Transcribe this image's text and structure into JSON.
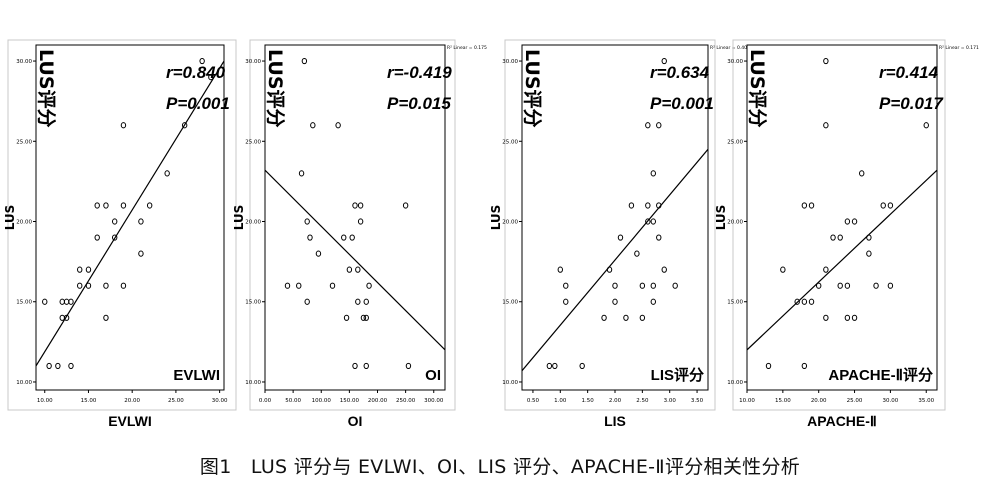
{
  "figure_caption": "图1　LUS 评分与 EVLWI、OI、LIS 评分、APACHE-Ⅱ评分相关性分析",
  "chart_data": [
    {
      "type": "scatter",
      "xlabel": "EVLWI",
      "ylabel": "LUS",
      "y_axis_title": "LUS评分",
      "in_plot_label": "EVLWI",
      "r_label": "r=0.840",
      "p_label": "P=0.001",
      "fit_note": "",
      "xlim": [
        9,
        30.5
      ],
      "ylim": [
        9.5,
        31
      ],
      "xticks": [
        10,
        15,
        20,
        25,
        30
      ],
      "xtick_labels": [
        "10.00",
        "15.00",
        "20.00",
        "25.00",
        "30.00"
      ],
      "yticks": [
        10,
        15,
        20,
        25,
        30
      ],
      "ytick_labels": [
        "10.00",
        "15.00",
        "20.00",
        "25.00",
        "30.00"
      ],
      "fit_line": [
        [
          9,
          11
        ],
        [
          30.5,
          30
        ]
      ],
      "points": [
        [
          10,
          15
        ],
        [
          10.5,
          11
        ],
        [
          11.5,
          11
        ],
        [
          12,
          15
        ],
        [
          12,
          14
        ],
        [
          12.5,
          14
        ],
        [
          12.5,
          15
        ],
        [
          13,
          11
        ],
        [
          13,
          15
        ],
        [
          14,
          16
        ],
        [
          14,
          17
        ],
        [
          15,
          16
        ],
        [
          15,
          17
        ],
        [
          16,
          19
        ],
        [
          16,
          21
        ],
        [
          17,
          16
        ],
        [
          17,
          14
        ],
        [
          17,
          21
        ],
        [
          18,
          19
        ],
        [
          18,
          20
        ],
        [
          19,
          16
        ],
        [
          19,
          21
        ],
        [
          19,
          26
        ],
        [
          21,
          20
        ],
        [
          21,
          18
        ],
        [
          22,
          21
        ],
        [
          24,
          23
        ],
        [
          26,
          26
        ],
        [
          28,
          30
        ],
        [
          29,
          29
        ]
      ]
    },
    {
      "type": "scatter",
      "xlabel": "OI",
      "ylabel": "LUS",
      "y_axis_title": "LUS评分",
      "in_plot_label": "OI",
      "r_label": "r=-0.419",
      "p_label": "P=0.015",
      "fit_note": "R² Linear = 0.175",
      "xlim": [
        0,
        320
      ],
      "ylim": [
        9.5,
        31
      ],
      "xticks": [
        0,
        50,
        100,
        150,
        200,
        250,
        300
      ],
      "xtick_labels": [
        "0.00",
        "50.00",
        "100.00",
        "150.00",
        "200.00",
        "250.00",
        "300.00"
      ],
      "yticks": [
        10,
        15,
        20,
        25,
        30
      ],
      "ytick_labels": [
        "10.00",
        "15.00",
        "20.00",
        "25.00",
        "30.00"
      ],
      "fit_line": [
        [
          0,
          23.2
        ],
        [
          320,
          12
        ]
      ],
      "points": [
        [
          40,
          16
        ],
        [
          60,
          16
        ],
        [
          65,
          23
        ],
        [
          70,
          30
        ],
        [
          75,
          20
        ],
        [
          75,
          15
        ],
        [
          80,
          19
        ],
        [
          85,
          26
        ],
        [
          95,
          18
        ],
        [
          120,
          16
        ],
        [
          130,
          26
        ],
        [
          140,
          19
        ],
        [
          145,
          14
        ],
        [
          150,
          17
        ],
        [
          155,
          19
        ],
        [
          160,
          21
        ],
        [
          160,
          11
        ],
        [
          165,
          17
        ],
        [
          165,
          15
        ],
        [
          170,
          20
        ],
        [
          170,
          21
        ],
        [
          175,
          14
        ],
        [
          180,
          15
        ],
        [
          180,
          14
        ],
        [
          185,
          16
        ],
        [
          180,
          11
        ],
        [
          250,
          21
        ],
        [
          255,
          11
        ]
      ]
    },
    {
      "type": "scatter",
      "xlabel": "LIS",
      "ylabel": "LUS",
      "y_axis_title": "LUS评分",
      "in_plot_label": "LIS评分",
      "r_label": "r=0.634",
      "p_label": "P=0.001",
      "fit_note": "R² Linear = 0.402",
      "xlim": [
        0.3,
        3.7
      ],
      "ylim": [
        9.5,
        31
      ],
      "xticks": [
        0.5,
        1.0,
        1.5,
        2.0,
        2.5,
        3.0,
        3.5
      ],
      "xtick_labels": [
        "0.50",
        "1.00",
        "1.50",
        "2.00",
        "2.50",
        "3.00",
        "3.50"
      ],
      "yticks": [
        10,
        15,
        20,
        25,
        30
      ],
      "ytick_labels": [
        "10.00",
        "15.00",
        "20.00",
        "25.00",
        "30.00"
      ],
      "fit_line": [
        [
          0.3,
          10.7
        ],
        [
          3.7,
          24.5
        ]
      ],
      "points": [
        [
          0.8,
          11
        ],
        [
          0.9,
          11
        ],
        [
          1.0,
          17
        ],
        [
          1.1,
          16
        ],
        [
          1.1,
          15
        ],
        [
          1.4,
          11
        ],
        [
          1.8,
          14
        ],
        [
          1.9,
          17
        ],
        [
          2.0,
          16
        ],
        [
          2.0,
          15
        ],
        [
          2.1,
          19
        ],
        [
          2.2,
          14
        ],
        [
          2.3,
          21
        ],
        [
          2.4,
          18
        ],
        [
          2.5,
          16
        ],
        [
          2.6,
          20
        ],
        [
          2.6,
          21
        ],
        [
          2.7,
          20
        ],
        [
          2.7,
          16
        ],
        [
          2.7,
          15
        ],
        [
          2.7,
          23
        ],
        [
          2.8,
          21
        ],
        [
          2.8,
          19
        ],
        [
          2.9,
          30
        ],
        [
          3.1,
          16
        ],
        [
          2.6,
          26
        ],
        [
          2.8,
          26
        ],
        [
          2.9,
          17
        ],
        [
          2.5,
          14
        ]
      ]
    },
    {
      "type": "scatter",
      "xlabel": "APACHE-Ⅱ",
      "ylabel": "LUS",
      "y_axis_title": "LUS评分",
      "in_plot_label": "APACHE-Ⅱ评分",
      "r_label": "r=0.414",
      "p_label": "P=0.017",
      "fit_note": "R² Linear = 0.171",
      "xlim": [
        10,
        36.5
      ],
      "ylim": [
        9.5,
        31
      ],
      "xticks": [
        10,
        15,
        20,
        25,
        30,
        35
      ],
      "xtick_labels": [
        "10.00",
        "15.00",
        "20.00",
        "25.00",
        "30.00",
        "35.00"
      ],
      "yticks": [
        10,
        15,
        20,
        25,
        30
      ],
      "ytick_labels": [
        "10.00",
        "15.00",
        "20.00",
        "25.00",
        "30.00"
      ],
      "fit_line": [
        [
          10,
          12
        ],
        [
          36.5,
          23.2
        ]
      ],
      "points": [
        [
          13,
          11
        ],
        [
          15,
          17
        ],
        [
          17,
          15
        ],
        [
          18,
          15
        ],
        [
          18,
          11
        ],
        [
          18,
          21
        ],
        [
          19,
          15
        ],
        [
          19,
          21
        ],
        [
          20,
          16
        ],
        [
          21,
          17
        ],
        [
          21,
          14
        ],
        [
          21,
          30
        ],
        [
          21,
          26
        ],
        [
          22,
          19
        ],
        [
          23,
          16
        ],
        [
          23,
          19
        ],
        [
          24,
          16
        ],
        [
          24,
          14
        ],
        [
          24,
          20
        ],
        [
          25,
          14
        ],
        [
          25,
          20
        ],
        [
          26,
          23
        ],
        [
          27,
          19
        ],
        [
          27,
          18
        ],
        [
          28,
          16
        ],
        [
          29,
          21
        ],
        [
          30,
          16
        ],
        [
          30,
          21
        ],
        [
          35,
          26
        ]
      ]
    }
  ]
}
